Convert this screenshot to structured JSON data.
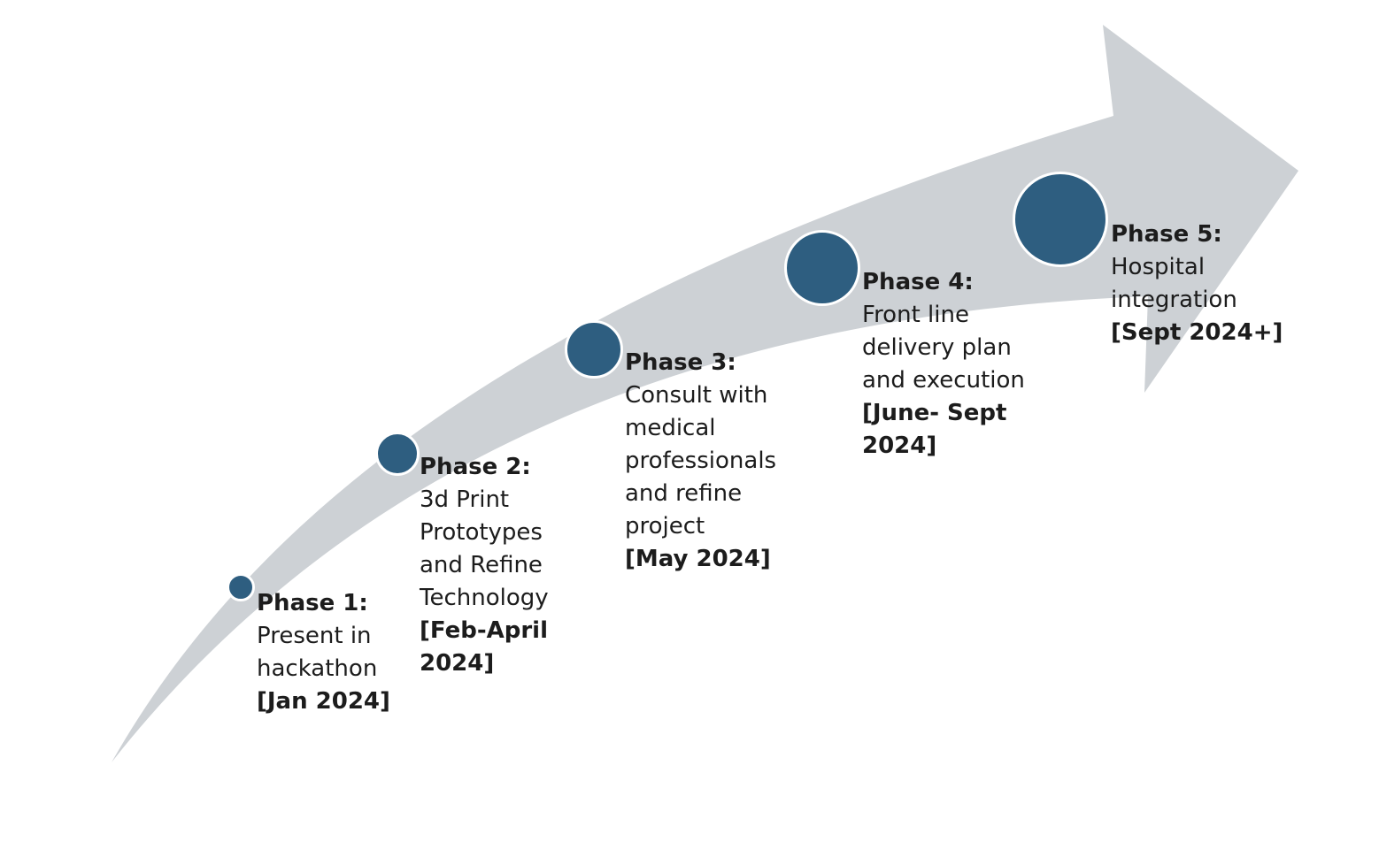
{
  "colors": {
    "arrow": "#cdd1d5",
    "milestone": "#2e5e80",
    "milestone_border": "#ffffff",
    "text": "#1c1c1c"
  },
  "phases": [
    {
      "title": "Phase 1:",
      "lines": [
        "Present in",
        "hackathon"
      ],
      "date_lines": [
        "[Jan 2024]"
      ]
    },
    {
      "title": "Phase 2:",
      "lines": [
        "3d Print",
        "Prototypes",
        "and Refine",
        "Technology"
      ],
      "date_lines": [
        "[Feb-April",
        "2024]"
      ]
    },
    {
      "title": "Phase 3:",
      "lines": [
        "Consult with",
        "medical",
        "professionals",
        "and refine",
        "project"
      ],
      "date_lines": [
        "[May 2024]"
      ]
    },
    {
      "title": "Phase 4:",
      "lines": [
        "Front line",
        "delivery plan",
        "and execution"
      ],
      "date_lines": [
        "[June- Sept",
        "2024]"
      ]
    },
    {
      "title": "Phase 5:",
      "lines": [
        "Hospital",
        "integration"
      ],
      "date_lines": [
        "[Sept 2024+]"
      ]
    }
  ]
}
